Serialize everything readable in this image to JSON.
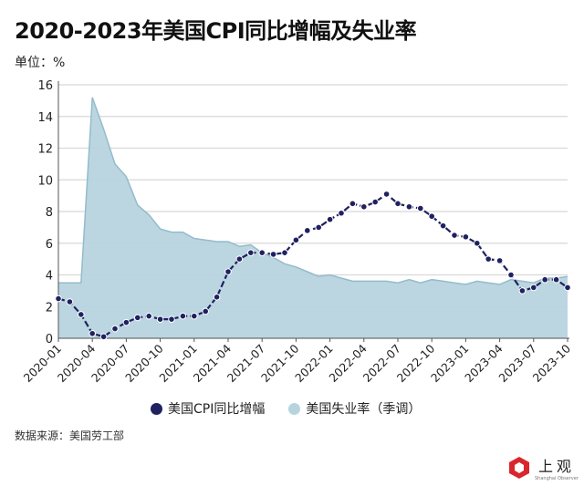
{
  "title": "2020-2023年美国CPI同比增幅及失业率",
  "unit_label": "单位：%",
  "source": "数据来源：美国劳工部",
  "logo": {
    "cn": "上观",
    "en": "Shanghai Observer",
    "color": "#d9262c"
  },
  "chart_data": {
    "type": "line+area",
    "title": "2020-2023年美国CPI同比增幅及失业率",
    "ylabel": "单位：%",
    "ylim": [
      0,
      16
    ],
    "yticks": [
      0,
      2,
      4,
      6,
      8,
      10,
      12,
      14,
      16
    ],
    "grid": true,
    "legend_placement": "bottom",
    "x": [
      "2020-01",
      "2020-02",
      "2020-03",
      "2020-04",
      "2020-05",
      "2020-06",
      "2020-07",
      "2020-08",
      "2020-09",
      "2020-10",
      "2020-11",
      "2020-12",
      "2021-01",
      "2021-02",
      "2021-03",
      "2021-04",
      "2021-05",
      "2021-06",
      "2021-07",
      "2021-08",
      "2021-09",
      "2021-10",
      "2021-11",
      "2021-12",
      "2022-01",
      "2022-02",
      "2022-03",
      "2022-04",
      "2022-05",
      "2022-06",
      "2022-07",
      "2022-08",
      "2022-09",
      "2022-10",
      "2022-11",
      "2022-12",
      "2023-01",
      "2023-02",
      "2023-03",
      "2023-04",
      "2023-05",
      "2023-06",
      "2023-07",
      "2023-08",
      "2023-09",
      "2023-10"
    ],
    "xticks": [
      "2020-01",
      "2020-04",
      "2020-07",
      "2020-10",
      "2021-01",
      "2021-04",
      "2021-07",
      "2021-10",
      "2022-01",
      "2022-04",
      "2022-07",
      "2022-10",
      "2023-01",
      "2023-04",
      "2023-07",
      "2023-10"
    ],
    "series": [
      {
        "name": "美国CPI同比增幅",
        "type": "line",
        "color": "#1f2161",
        "values": [
          2.5,
          2.3,
          1.5,
          0.3,
          0.1,
          0.6,
          1.0,
          1.3,
          1.4,
          1.2,
          1.2,
          1.4,
          1.4,
          1.7,
          2.6,
          4.2,
          5.0,
          5.4,
          5.4,
          5.3,
          5.4,
          6.2,
          6.8,
          7.0,
          7.5,
          7.9,
          8.5,
          8.3,
          8.6,
          9.1,
          8.5,
          8.3,
          8.2,
          7.7,
          7.1,
          6.5,
          6.4,
          6.0,
          5.0,
          4.9,
          4.0,
          3.0,
          3.2,
          3.7,
          3.7,
          3.2
        ]
      },
      {
        "name": "美国失业率（季调）",
        "type": "area",
        "color": "#b7d4de",
        "values": [
          3.5,
          3.5,
          3.5,
          15.2,
          13.2,
          11.0,
          10.2,
          8.4,
          7.8,
          6.9,
          6.7,
          6.7,
          6.3,
          6.2,
          6.1,
          6.1,
          5.8,
          5.9,
          5.4,
          5.1,
          4.7,
          4.5,
          4.2,
          3.9,
          4.0,
          3.8,
          3.6,
          3.6,
          3.6,
          3.6,
          3.5,
          3.7,
          3.5,
          3.7,
          3.6,
          3.5,
          3.4,
          3.6,
          3.5,
          3.4,
          3.7,
          3.6,
          3.5,
          3.8,
          3.8,
          3.9
        ]
      }
    ]
  }
}
